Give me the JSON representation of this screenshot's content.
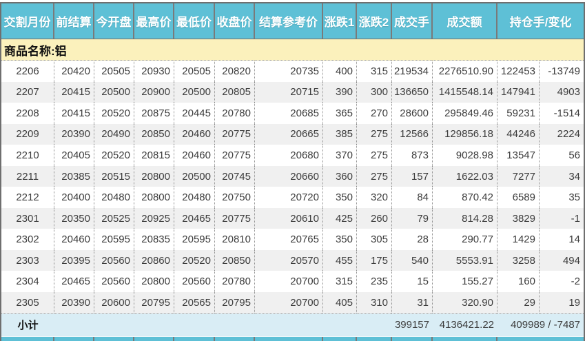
{
  "table": {
    "columns": [
      {
        "label": "交割月份"
      },
      {
        "label": "前结算"
      },
      {
        "label": "今开盘"
      },
      {
        "label": "最高价"
      },
      {
        "label": "最低价"
      },
      {
        "label": "收盘价"
      },
      {
        "label": "结算参考价"
      },
      {
        "label": "涨跌1"
      },
      {
        "label": "涨跌2"
      },
      {
        "label": "成交手"
      },
      {
        "label": "成交额"
      },
      {
        "label": "持仓手/变化"
      }
    ],
    "group_label": "商品名称:铝",
    "rows": [
      [
        "2206",
        "20420",
        "20505",
        "20930",
        "20505",
        "20820",
        "20735",
        "400",
        "315",
        "219534",
        "2276510.90",
        "122453",
        "-13749"
      ],
      [
        "2207",
        "20415",
        "20500",
        "20900",
        "20500",
        "20805",
        "20715",
        "390",
        "300",
        "136650",
        "1415548.14",
        "147941",
        "4903"
      ],
      [
        "2208",
        "20415",
        "20520",
        "20875",
        "20445",
        "20780",
        "20685",
        "365",
        "270",
        "28600",
        "295849.46",
        "59231",
        "-1514"
      ],
      [
        "2209",
        "20390",
        "20490",
        "20850",
        "20460",
        "20775",
        "20665",
        "385",
        "275",
        "12566",
        "129856.18",
        "44246",
        "2224"
      ],
      [
        "2210",
        "20405",
        "20520",
        "20815",
        "20460",
        "20775",
        "20680",
        "370",
        "275",
        "873",
        "9028.98",
        "13547",
        "56"
      ],
      [
        "2211",
        "20385",
        "20515",
        "20800",
        "20500",
        "20745",
        "20660",
        "360",
        "275",
        "157",
        "1622.03",
        "7277",
        "34"
      ],
      [
        "2212",
        "20400",
        "20480",
        "20800",
        "20480",
        "20750",
        "20720",
        "350",
        "320",
        "84",
        "870.42",
        "6589",
        "35"
      ],
      [
        "2301",
        "20350",
        "20525",
        "20925",
        "20465",
        "20775",
        "20610",
        "425",
        "260",
        "79",
        "814.28",
        "3829",
        "-1"
      ],
      [
        "2302",
        "20460",
        "20595",
        "20835",
        "20595",
        "20810",
        "20765",
        "350",
        "305",
        "28",
        "290.77",
        "1429",
        "14"
      ],
      [
        "2303",
        "20395",
        "20560",
        "20860",
        "20520",
        "20850",
        "20570",
        "455",
        "175",
        "540",
        "5553.91",
        "3258",
        "494"
      ],
      [
        "2304",
        "20465",
        "20560",
        "20800",
        "20560",
        "20780",
        "20700",
        "315",
        "235",
        "15",
        "155.27",
        "160",
        "-2"
      ],
      [
        "2305",
        "20390",
        "20600",
        "20795",
        "20565",
        "20795",
        "20700",
        "405",
        "310",
        "31",
        "320.90",
        "29",
        "19"
      ]
    ],
    "subtotal": {
      "label": "小计",
      "volume": "399157",
      "turnover": "4136421.22",
      "open_interest_change": "409989 / -7487"
    }
  },
  "colors": {
    "header_bg": "#5ec0d6",
    "header_text": "#ffffff",
    "group_row_bg": "#fbf1bc",
    "row_bg": "#ffffff",
    "row_alt_bg": "#f0f0f0",
    "subtotal_bg": "#d9edf5",
    "grid_line": "#8f8f8f",
    "outer_border": "#6f6f6f"
  }
}
